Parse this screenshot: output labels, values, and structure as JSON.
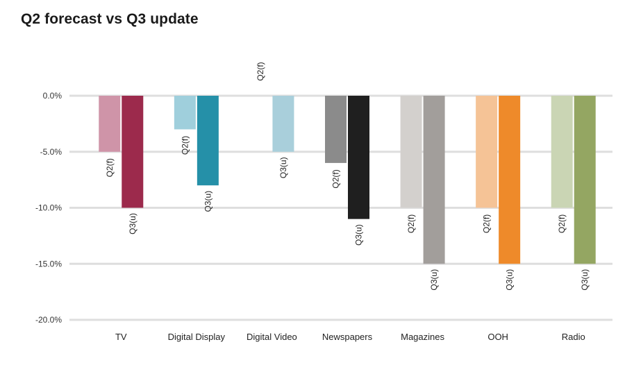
{
  "title": "Q2 forecast vs Q3 update",
  "chart_data": {
    "type": "bar",
    "title": "Q2 forecast vs Q3 update",
    "xlabel": "",
    "ylabel": "",
    "ylim": [
      -20,
      0
    ],
    "yticks": [
      0,
      -5,
      -10,
      -15,
      -20
    ],
    "ytick_labels": [
      "0.0%",
      "-5.0%",
      "-10.0%",
      "-15.0%",
      "-20.0%"
    ],
    "grid": true,
    "legend": "none",
    "categories": [
      "TV",
      "Digital Display",
      "Digital Video",
      "Newspapers",
      "Magazines",
      "OOH",
      "Radio"
    ],
    "series": [
      {
        "name": "Q2(f)",
        "values": [
          -5,
          -3,
          0,
          -6,
          -10,
          -10,
          -10
        ],
        "labels": [
          "Q2(f)",
          "Q2(f)",
          "Q2(f)",
          "Q2(f)",
          "Q2(f)",
          "Q2(f)",
          "Q2(f)"
        ],
        "colors": [
          "#cf94a8",
          "#9fcfdc",
          "#a9cfdb",
          "#8b8b8b",
          "#d3d0cd",
          "#f5c396",
          "#cad5b4"
        ]
      },
      {
        "name": "Q3(u)",
        "values": [
          -10,
          -8,
          -5,
          -11,
          -15,
          -15,
          -15
        ],
        "labels": [
          "Q3(u)",
          "Q3(u)",
          "Q3(u)",
          "Q3(u)",
          "Q3(u)",
          "Q3(u)",
          "Q3(u)"
        ],
        "colors": [
          "#9c2a4c",
          "#2590a8",
          "#a9cfdb",
          "#1f1f1f",
          "#a29e9b",
          "#ee8a2a",
          "#94a662"
        ]
      }
    ]
  }
}
